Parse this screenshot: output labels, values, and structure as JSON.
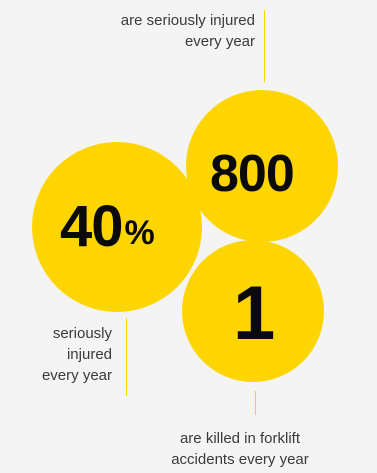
{
  "stats": {
    "percent": {
      "number": "40",
      "unit": "%",
      "caption_lines": [
        "seriously",
        "injured",
        "every year"
      ]
    },
    "injured": {
      "number": "800",
      "caption_lines": [
        "are seriously injured",
        "every year"
      ]
    },
    "killed": {
      "number": "1",
      "caption_lines": [
        "are killed in forklift",
        "accidents every year"
      ]
    }
  },
  "colors": {
    "accent": "#ffd500",
    "background": "#f4f4f4",
    "number_text": "#0a0a0a",
    "caption_text": "#3a3a3a"
  }
}
